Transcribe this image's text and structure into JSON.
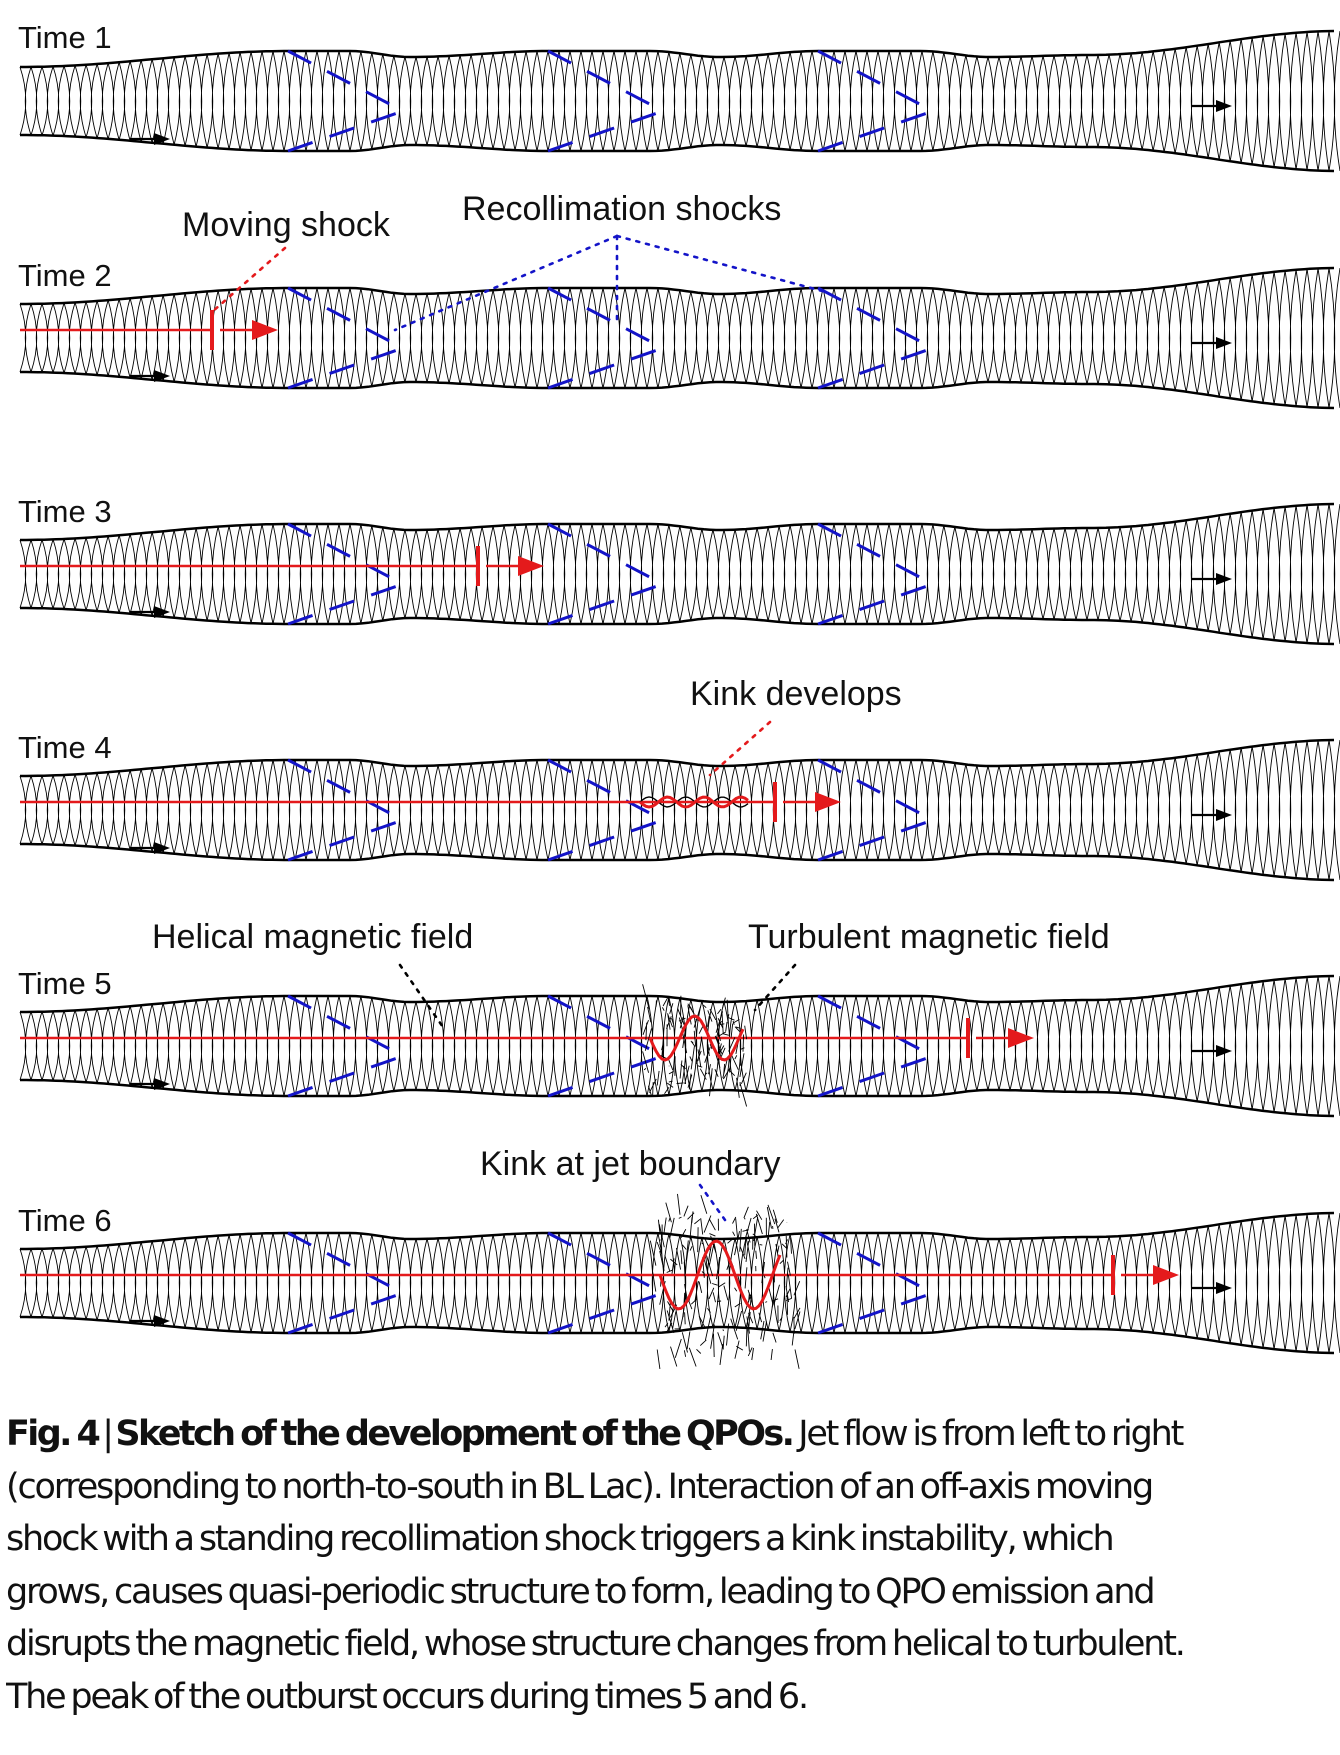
{
  "figure": {
    "panels": [
      {
        "label": "Time 1",
        "moving_shock": false,
        "kink_stage": 0
      },
      {
        "label": "Time 2",
        "moving_shock": true,
        "kink_stage": 0
      },
      {
        "label": "Time 3",
        "moving_shock": true,
        "kink_stage": 0
      },
      {
        "label": "Time 4",
        "moving_shock": true,
        "kink_stage": 1
      },
      {
        "label": "Time 5",
        "moving_shock": true,
        "kink_stage": 2
      },
      {
        "label": "Time 6",
        "moving_shock": true,
        "kink_stage": 3
      }
    ],
    "annotations": {
      "moving_shock": "Moving shock",
      "recollimation_shocks": "Recollimation shocks",
      "kink_develops": "Kink develops",
      "helical_field": "Helical magnetic field",
      "turbulent_field": "Turbulent magnetic field",
      "kink_boundary": "Kink at jet boundary"
    },
    "colors": {
      "jet_outline": "#000000",
      "recollimation_shock": "#1414c8",
      "moving_shock": "#e41a1c",
      "text": "#111111"
    },
    "icons": {
      "flow_arrow": "arrow-right-icon",
      "shock_front": "shock-marker-icon"
    }
  },
  "caption": {
    "fig_label": "Fig. 4",
    "separator": "|",
    "title": "Sketch of the development of the QPOs.",
    "lines": [
      " Jet flow is from left to right",
      "(corresponding to north-to-south in BL Lac). Interaction of an off-axis moving",
      "shock with a standing recollimation shock triggers a kink instability, which",
      "grows, causes quasi-periodic structure to form, leading to QPO emission and",
      "disrupts the magnetic field, whose structure changes from helical to turbulent.",
      "The peak of the outburst occurs during times 5 and 6."
    ]
  }
}
